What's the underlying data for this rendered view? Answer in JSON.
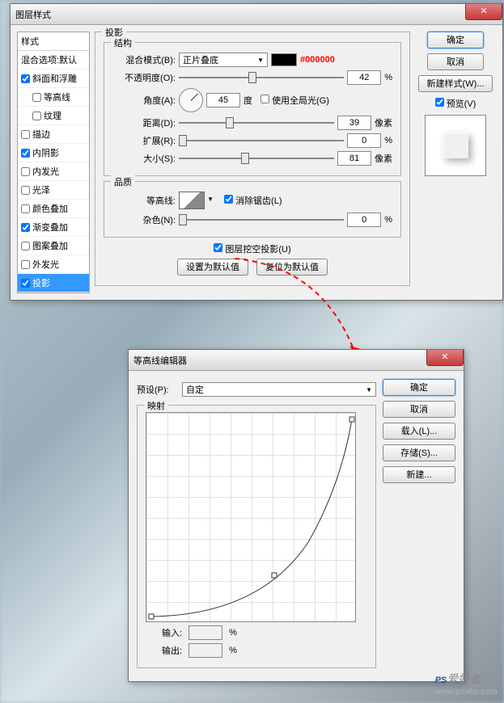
{
  "main_dialog": {
    "title": "图层样式",
    "styles_header": "样式",
    "blend_options": "混合选项:默认",
    "items": [
      {
        "label": "斜面和浮雕",
        "checked": true,
        "indent": false
      },
      {
        "label": "等高线",
        "checked": false,
        "indent": true
      },
      {
        "label": "纹理",
        "checked": false,
        "indent": true
      },
      {
        "label": "描边",
        "checked": false,
        "indent": false
      },
      {
        "label": "内阴影",
        "checked": true,
        "indent": false
      },
      {
        "label": "内发光",
        "checked": false,
        "indent": false
      },
      {
        "label": "光泽",
        "checked": false,
        "indent": false
      },
      {
        "label": "颜色叠加",
        "checked": false,
        "indent": false
      },
      {
        "label": "渐变叠加",
        "checked": true,
        "indent": false
      },
      {
        "label": "图案叠加",
        "checked": false,
        "indent": false
      },
      {
        "label": "外发光",
        "checked": false,
        "indent": false
      },
      {
        "label": "投影",
        "checked": true,
        "indent": false,
        "selected": true
      }
    ],
    "section": {
      "title": "投影",
      "structure": {
        "legend": "结构",
        "blend_mode_label": "混合模式(B):",
        "blend_mode_value": "正片叠底",
        "color": "#000000",
        "hex_annotation": "#000000",
        "opacity_label": "不透明度(O):",
        "opacity_value": "42",
        "opacity_unit": "%",
        "angle_label": "角度(A):",
        "angle_value": "45",
        "angle_unit": "度",
        "global_light_label": "使用全局光(G)",
        "distance_label": "距离(D):",
        "distance_value": "39",
        "distance_unit": "像素",
        "spread_label": "扩展(R):",
        "spread_value": "0",
        "spread_unit": "%",
        "size_label": "大小(S):",
        "size_value": "81",
        "size_unit": "像素"
      },
      "quality": {
        "legend": "品质",
        "contour_label": "等高线:",
        "antialias_label": "消除锯齿(L)",
        "noise_label": "杂色(N):",
        "noise_value": "0",
        "noise_unit": "%"
      },
      "knockout_label": "图层挖空投影(U)",
      "set_default": "设置为默认值",
      "reset_default": "复位为默认值"
    },
    "buttons": {
      "ok": "确定",
      "cancel": "取消",
      "new_style": "新建样式(W)...",
      "preview_label": "预览(V)"
    }
  },
  "contour_dialog": {
    "title": "等高线编辑器",
    "preset_label": "预设(P):",
    "preset_value": "自定",
    "mapping_legend": "映射",
    "input_label": "输入:",
    "output_label": "输出:",
    "percent": "%",
    "buttons": {
      "ok": "确定",
      "cancel": "取消",
      "load": "载入(L)...",
      "save": "存储(S)...",
      "new": "新建..."
    }
  },
  "watermark": {
    "brand1": "PS",
    "brand2": "爱好者",
    "url": "www.psahz.com"
  },
  "slider_positions": {
    "opacity": 42,
    "distance": 30,
    "spread": 0,
    "size": 40,
    "noise": 0
  }
}
